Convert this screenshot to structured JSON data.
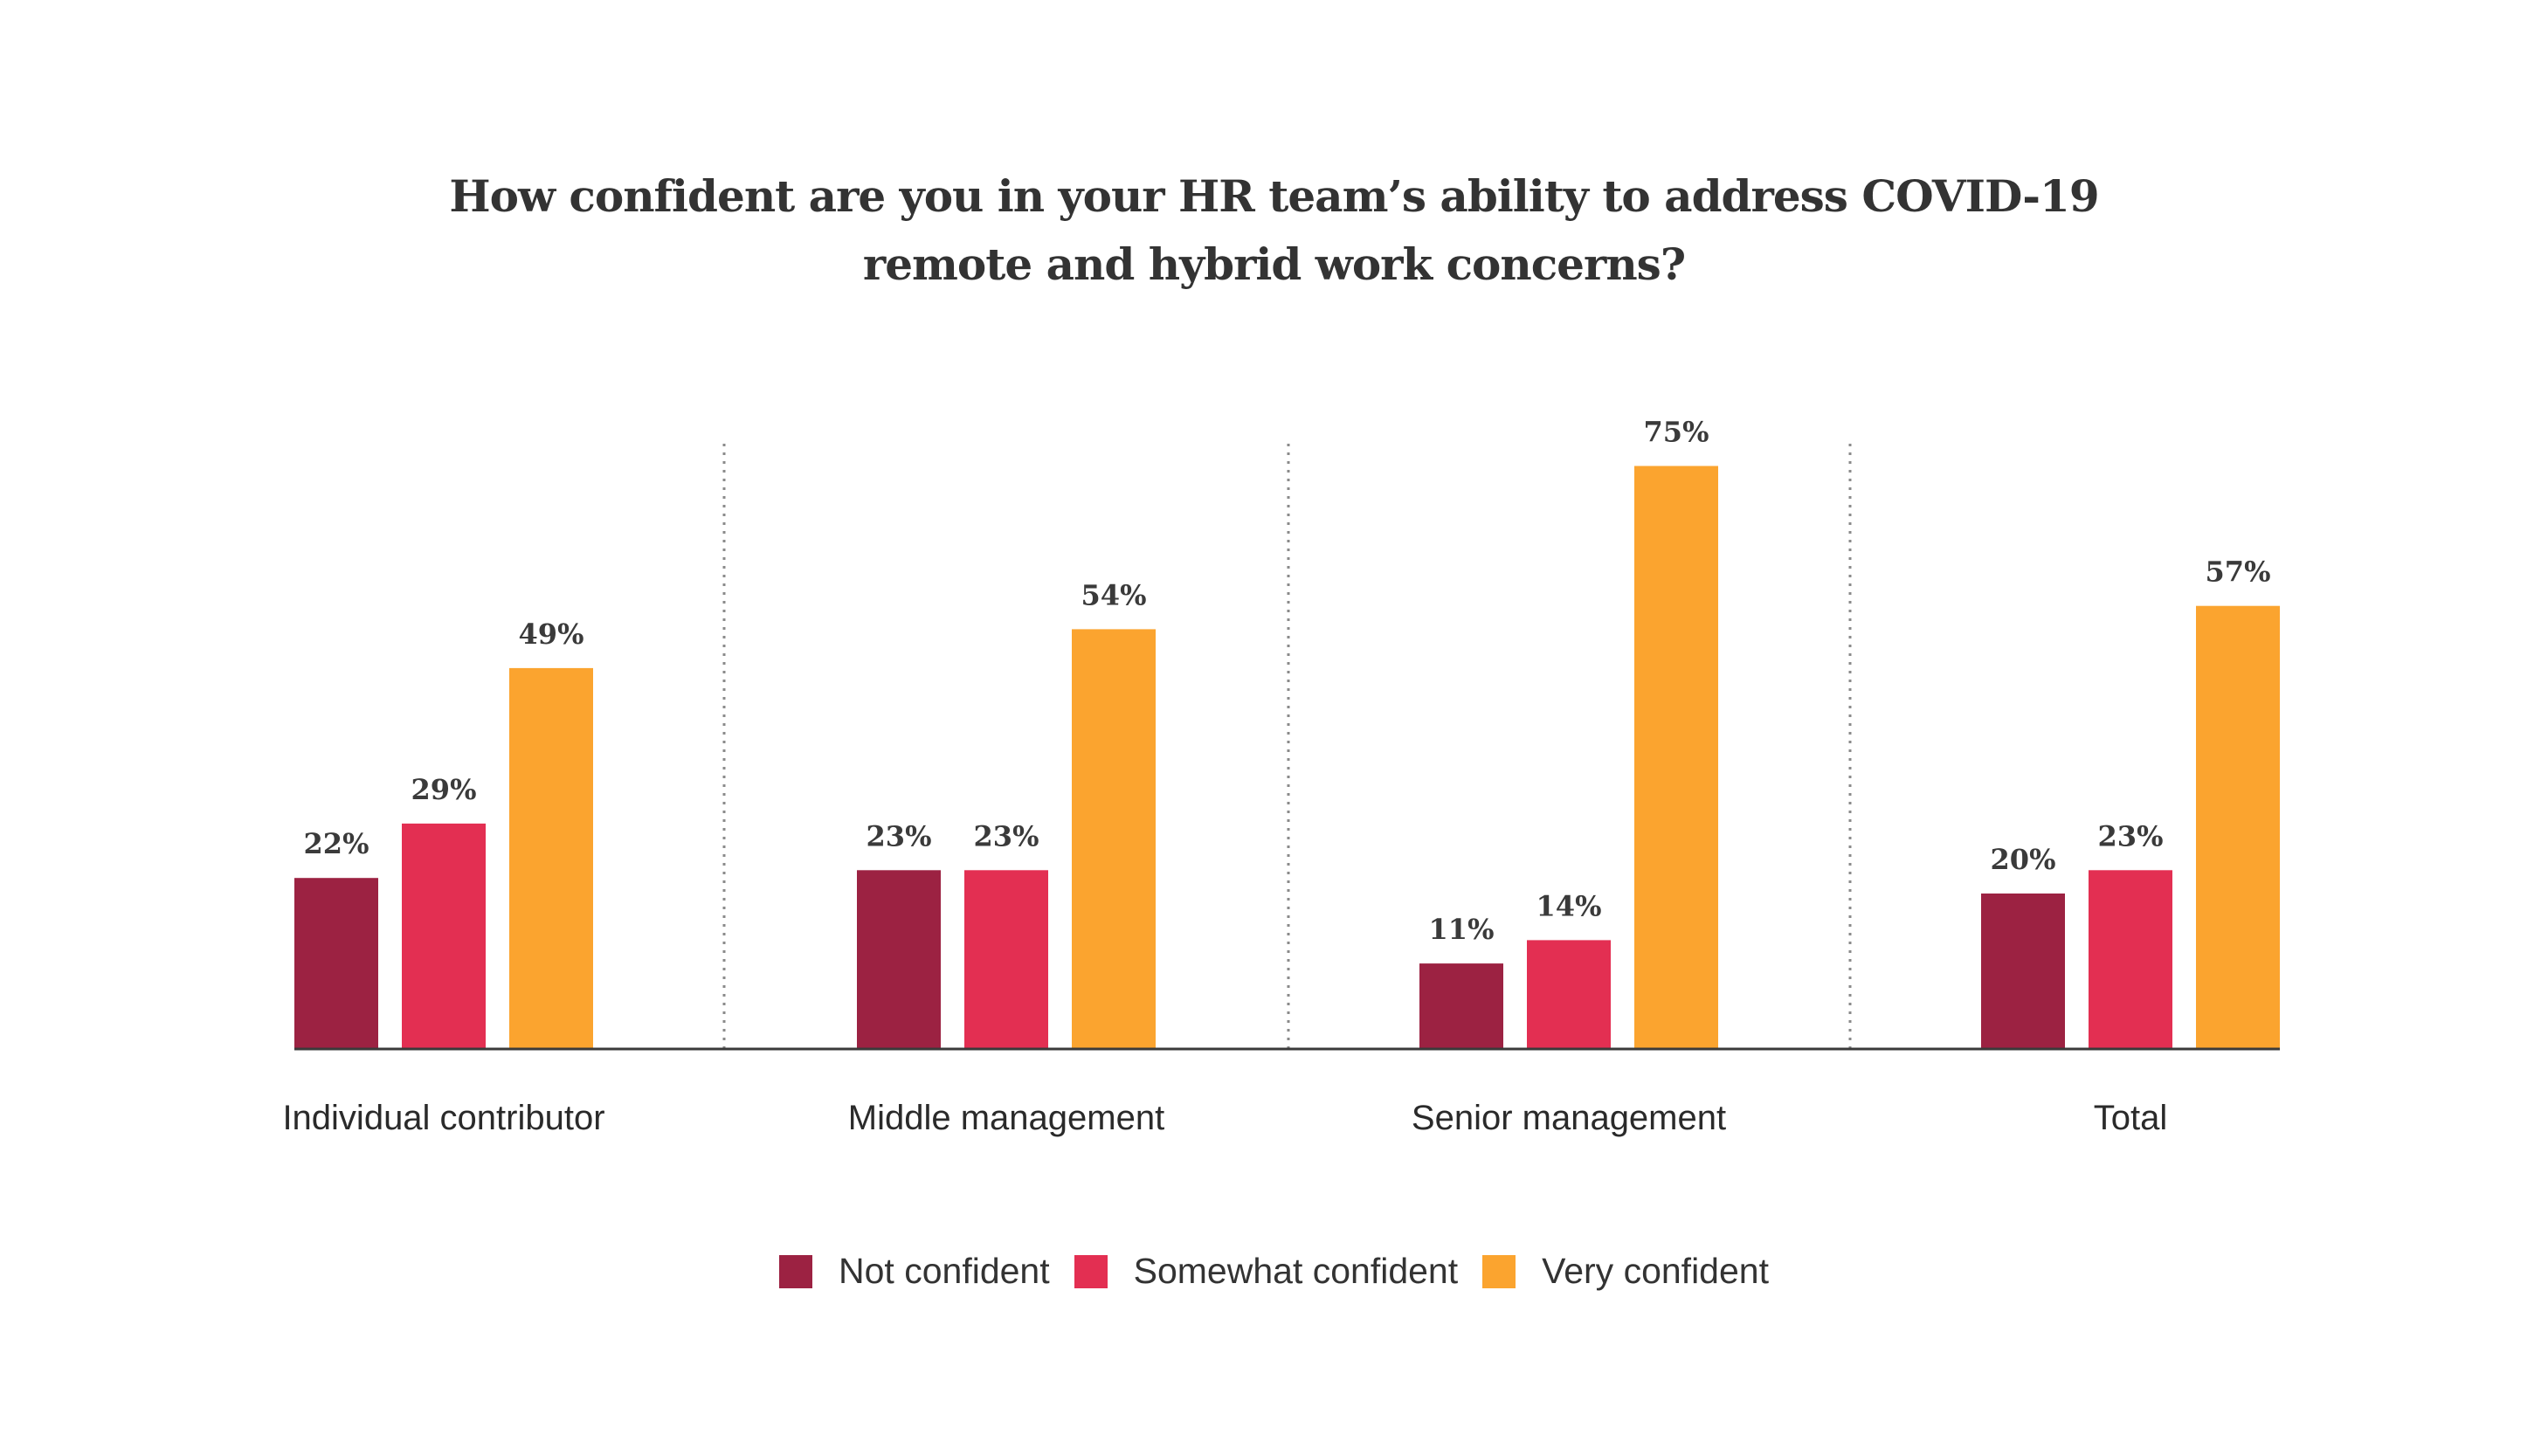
{
  "chart_data": {
    "type": "bar",
    "title": "How confident are you in your HR team’s ability to address COVID-19 remote and hybrid work concerns?",
    "title_lines": [
      "How confident are you in your HR team’s ability to address COVID-19",
      "remote and hybrid work concerns?"
    ],
    "categories": [
      "Individual contributor",
      "Middle management",
      "Senior management",
      "Total"
    ],
    "series": [
      {
        "name": "Not confident",
        "color": "#9c2242",
        "values": [
          22,
          23,
          11,
          20
        ]
      },
      {
        "name": "Somewhat confident",
        "color": "#e32f52",
        "values": [
          29,
          23,
          14,
          23
        ]
      },
      {
        "name": "Very confident",
        "color": "#fba42f",
        "values": [
          49,
          54,
          75,
          57
        ]
      }
    ],
    "value_suffix": "%",
    "ylim": [
      0,
      100
    ],
    "grid": false,
    "legend_position": "bottom",
    "xlabel": "",
    "ylabel": ""
  }
}
